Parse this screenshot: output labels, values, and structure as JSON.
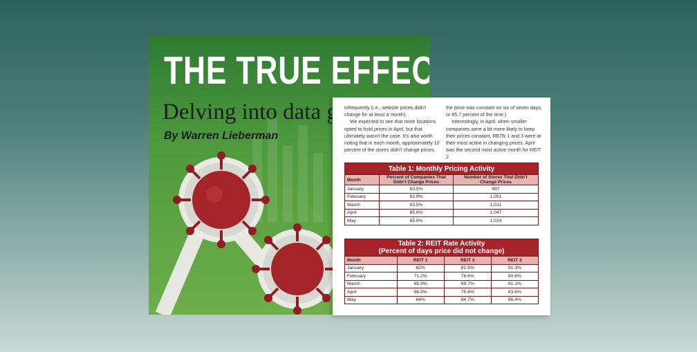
{
  "cover": {
    "title": "THE TRUE EFFECT OF",
    "subtitle": "Delving into data ga",
    "byline": "By Warren Lieberman",
    "colors": {
      "green_dark": "#2f7a34",
      "green_light": "#6fae4b",
      "virus_red": "#a5242a"
    },
    "art": [
      "virus-icon",
      "virus-icon",
      "trend-arrow"
    ]
  },
  "page": {
    "col_left": [
      "infrequently (i.e., website prices didn't change for at least a month).",
      "We expected to see that more locations opted to hold prices in April, but that ultimately wasn't the case. It's also worth noting that in each month, approximately 10 percent of the stores didn't change prices."
    ],
    "col_right": [
      "the price was constant on six of seven days, or 85.7 percent of the time.)",
      "Interestingly, in April, when smaller companies were a bit more likely to keep their prices constant, REITs 1 and 3 were at their most active in changing prices. April was the second most active month for REIT 2."
    ],
    "table1": {
      "title": "Table 1: Monthly Pricing Activity",
      "headers": [
        "Month",
        "Percent of Companies That Didn't Change Prices",
        "Number of Stores That Didn't Change Prices"
      ],
      "rows": [
        [
          "January",
          "63.5%",
          "997"
        ],
        [
          "February",
          "63.9%",
          "1,051"
        ],
        [
          "March",
          "63.5%",
          "1,011"
        ],
        [
          "April",
          "65.6%",
          "1,047"
        ],
        [
          "May",
          "65.6%",
          "1,024"
        ]
      ]
    },
    "table2": {
      "title_line1": "Table 2: REIT Rate Activity",
      "title_line2": "(Percent of days price did not change)",
      "headers": [
        "Month",
        "REIT 1",
        "REIT 2",
        "REIT 3"
      ],
      "rows": [
        [
          "January",
          "62%",
          "81.5%",
          "91.3%"
        ],
        [
          "February",
          "71.2%",
          "78.6%",
          "90.6%"
        ],
        [
          "March",
          "65.9%",
          "69.7%",
          "91.1%"
        ],
        [
          "April",
          "56.9%",
          "75.6%",
          "83.6%"
        ],
        [
          "May",
          "64%",
          "84.7%",
          "86.4%"
        ]
      ]
    },
    "colors": {
      "table_title_bg": "#a5242a",
      "table_header_bg": "#e8b3ae"
    }
  }
}
